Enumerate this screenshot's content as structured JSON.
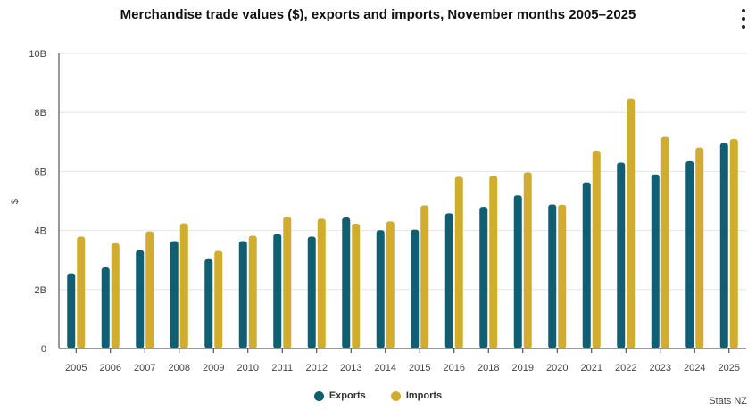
{
  "title": "Merchandise trade values ($), exports and imports, November months 2005–2025",
  "credit": "Stats NZ",
  "menu_icon": "kebab-menu-icon",
  "colors": {
    "exports": "#0f5e72",
    "imports": "#d0ac2f",
    "grid": "#e5e5e5",
    "axis": "#333333"
  },
  "chart_data": {
    "type": "bar",
    "title": "Merchandise trade values ($), exports and imports, November months 2005–2025",
    "xlabel": "",
    "ylabel": "$",
    "ylim": [
      0,
      10000000000
    ],
    "yticks": [
      {
        "value": 0,
        "label": "0"
      },
      {
        "value": 2000000000,
        "label": "2B"
      },
      {
        "value": 4000000000,
        "label": "4B"
      },
      {
        "value": 6000000000,
        "label": "6B"
      },
      {
        "value": 8000000000,
        "label": "8B"
      },
      {
        "value": 10000000000,
        "label": "10B"
      }
    ],
    "grid": true,
    "legend_position": "bottom-center",
    "categories": [
      "2005",
      "2006",
      "2007",
      "2008",
      "2009",
      "2010",
      "2011",
      "2012",
      "2013",
      "2014",
      "2015",
      "2016",
      "2018",
      "2019",
      "2020",
      "2021",
      "2022",
      "2023",
      "2024",
      "2025"
    ],
    "series": [
      {
        "name": "Exports",
        "color": "#0f5e72",
        "values": [
          2550000000,
          2750000000,
          3330000000,
          3640000000,
          3030000000,
          3640000000,
          3880000000,
          3790000000,
          4440000000,
          4010000000,
          4030000000,
          4580000000,
          4800000000,
          5190000000,
          4880000000,
          5630000000,
          6300000000,
          5900000000,
          6350000000,
          6960000000
        ]
      },
      {
        "name": "Imports",
        "color": "#d0ac2f",
        "values": [
          3790000000,
          3570000000,
          3970000000,
          4240000000,
          3310000000,
          3820000000,
          4460000000,
          4400000000,
          4230000000,
          4310000000,
          4850000000,
          5820000000,
          5850000000,
          5970000000,
          4870000000,
          6710000000,
          8470000000,
          7170000000,
          6810000000,
          7100000000
        ]
      }
    ]
  }
}
